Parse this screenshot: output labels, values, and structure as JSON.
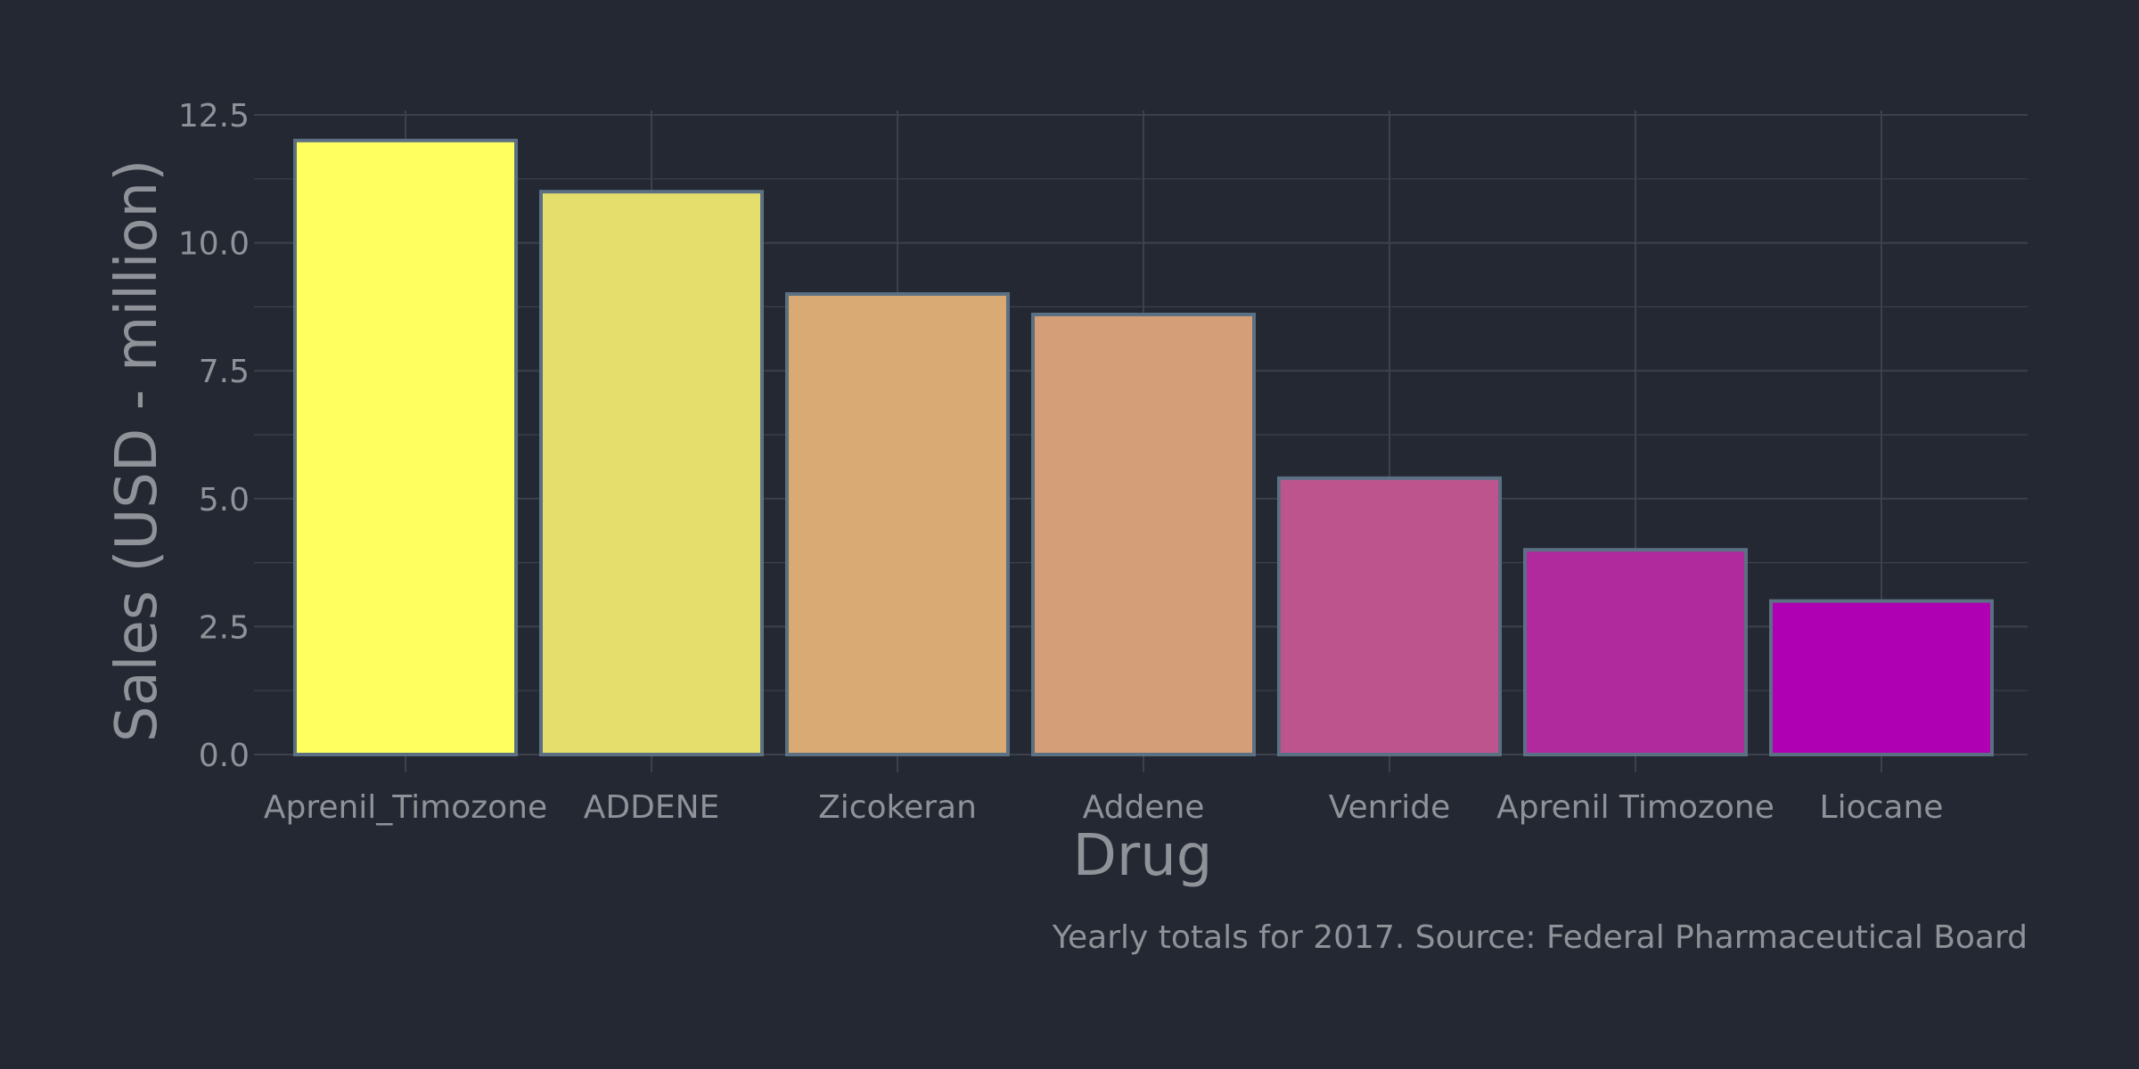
{
  "chart_data": {
    "type": "bar",
    "categories": [
      "Aprenil_Timozone",
      "ADDENE",
      "Zicokeran",
      "Addene",
      "Venride",
      "Aprenil Timozone",
      "Liocane"
    ],
    "values": [
      12.0,
      11.0,
      9.0,
      8.6,
      5.4,
      4.0,
      3.0
    ],
    "bar_colors": [
      "#ffff60",
      "#e5dd6c",
      "#d9aa74",
      "#d39e78",
      "#be548e",
      "#b02a9e",
      "#b000b4"
    ],
    "bar_outline_color": "#5c7083",
    "background_color": "#242832",
    "grid_color": "#3c414b",
    "text_color": "#8f9298",
    "xlabel": "Drug",
    "ylabel": "Sales (USD - million)",
    "ylim": [
      0,
      12.5
    ],
    "yticks": [
      0.0,
      2.5,
      5.0,
      7.5,
      10.0,
      12.5
    ],
    "ytick_labels": [
      "0.0",
      "2.5",
      "5.0",
      "7.5",
      "10.0",
      "12.5"
    ],
    "grid": true,
    "caption": "Yearly totals for 2017. Source: Federal Pharmaceutical Board"
  }
}
